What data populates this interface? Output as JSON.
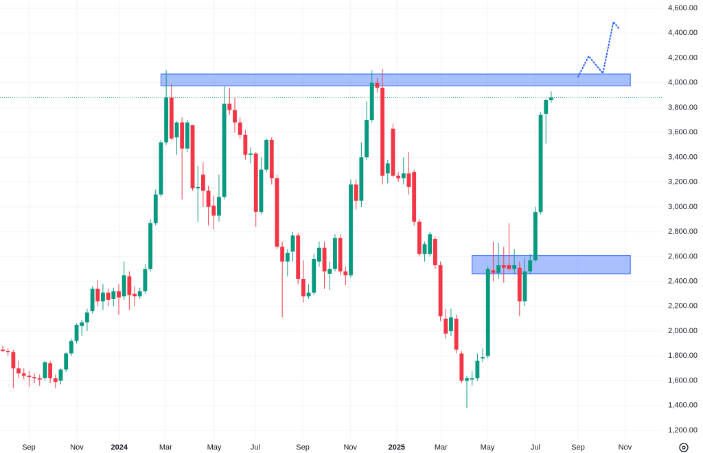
{
  "chart_data": {
    "type": "candlestick",
    "up_color": "#089981",
    "down_color": "#f23645",
    "zone_color": "#2962ff",
    "projection_color": "#2962ff",
    "price_line_color": "#089981",
    "xlim": [
      -0.52,
      125.1
    ],
    "ylim": [
      1134,
      4666
    ],
    "grid": true,
    "xticks": [
      {
        "value": 4.95,
        "label": "Sep"
      },
      {
        "value": 14.06,
        "label": "Nov"
      },
      {
        "value": 22.1,
        "label": "2024"
      },
      {
        "value": 30.9,
        "label": "Mar"
      },
      {
        "value": 40.1,
        "label": "May"
      },
      {
        "value": 47.9,
        "label": "Jul"
      },
      {
        "value": 56.9,
        "label": "Sep"
      },
      {
        "value": 65.9,
        "label": "Nov"
      },
      {
        "value": 74.7,
        "label": "2025"
      },
      {
        "value": 83.1,
        "label": "Mar"
      },
      {
        "value": 91.9,
        "label": "May"
      },
      {
        "value": 101.0,
        "label": "Jul"
      },
      {
        "value": 109.1,
        "label": "Sep"
      },
      {
        "value": 118.0,
        "label": "Nov"
      }
    ],
    "yticks": [
      {
        "value": 1200,
        "label": "1,200.00"
      },
      {
        "value": 1400,
        "label": "1,400.00"
      },
      {
        "value": 1600,
        "label": "1,600.00"
      },
      {
        "value": 1800,
        "label": "1,800.00"
      },
      {
        "value": 2000,
        "label": "2,000.00"
      },
      {
        "value": 2200,
        "label": "2,200.00"
      },
      {
        "value": 2400,
        "label": "2,400.00"
      },
      {
        "value": 2600,
        "label": "2,600.00"
      },
      {
        "value": 2800,
        "label": "2,800.00"
      },
      {
        "value": 3000,
        "label": "3,000.00"
      },
      {
        "value": 3200,
        "label": "3,200.00"
      },
      {
        "value": 3400,
        "label": "3,400.00"
      },
      {
        "value": 3600,
        "label": "3,600.00"
      },
      {
        "value": 3800,
        "label": "3,800.00"
      },
      {
        "value": 4000,
        "label": "4,000.00"
      },
      {
        "value": 4200,
        "label": "4,200.00"
      },
      {
        "value": 4400,
        "label": "4,400.00"
      },
      {
        "value": 4600,
        "label": "4,600.00"
      }
    ],
    "ohlc": [
      [
        1850,
        1880,
        1830,
        1840
      ],
      [
        1840,
        1860,
        1800,
        1830
      ],
      [
        1830,
        1850,
        1540,
        1700
      ],
      [
        1700,
        1760,
        1620,
        1660
      ],
      [
        1660,
        1700,
        1610,
        1640
      ],
      [
        1640,
        1680,
        1550,
        1630
      ],
      [
        1630,
        1660,
        1580,
        1620
      ],
      [
        1620,
        1650,
        1560,
        1610
      ],
      [
        1620,
        1760,
        1600,
        1750
      ],
      [
        1740,
        1760,
        1580,
        1620
      ],
      [
        1620,
        1650,
        1540,
        1590
      ],
      [
        1600,
        1700,
        1570,
        1690
      ],
      [
        1690,
        1830,
        1670,
        1820
      ],
      [
        1820,
        1940,
        1800,
        1920
      ],
      [
        1920,
        2060,
        1900,
        2050
      ],
      [
        2040,
        2090,
        1960,
        2070
      ],
      [
        2070,
        2180,
        2000,
        2150
      ],
      [
        2160,
        2360,
        2140,
        2340
      ],
      [
        2340,
        2410,
        2200,
        2240
      ],
      [
        2240,
        2380,
        2170,
        2310
      ],
      [
        2310,
        2340,
        2200,
        2250
      ],
      [
        2260,
        2350,
        2200,
        2320
      ],
      [
        2320,
        2380,
        2130,
        2270
      ],
      [
        2280,
        2560,
        2250,
        2450
      ],
      [
        2440,
        2480,
        2170,
        2290
      ],
      [
        2300,
        2360,
        2200,
        2280
      ],
      [
        2280,
        2350,
        2260,
        2320
      ],
      [
        2320,
        2540,
        2300,
        2500
      ],
      [
        2500,
        2900,
        2480,
        2870
      ],
      [
        2870,
        3140,
        2850,
        3100
      ],
      [
        3100,
        3540,
        3080,
        3520
      ],
      [
        3520,
        4100,
        3500,
        3880
      ],
      [
        3880,
        3990,
        3540,
        3550
      ],
      [
        3560,
        3690,
        3420,
        3680
      ],
      [
        3680,
        3720,
        3060,
        3470
      ],
      [
        3470,
        3700,
        3440,
        3680
      ],
      [
        3660,
        3660,
        3130,
        3150
      ],
      [
        3150,
        3330,
        2880,
        3160
      ],
      [
        3260,
        3360,
        3000,
        3130
      ],
      [
        3130,
        3170,
        2850,
        3000
      ],
      [
        3010,
        3090,
        2820,
        2930
      ],
      [
        2930,
        3260,
        2880,
        3080
      ],
      [
        3080,
        3970,
        3060,
        3830
      ],
      [
        3830,
        3960,
        3740,
        3780
      ],
      [
        3780,
        3880,
        3600,
        3680
      ],
      [
        3680,
        3720,
        3550,
        3580
      ],
      [
        3580,
        3620,
        3380,
        3420
      ],
      [
        3420,
        3480,
        3350,
        3430
      ],
      [
        3430,
        3440,
        2840,
        2960
      ],
      [
        2960,
        3400,
        2940,
        3300
      ],
      [
        3300,
        3550,
        3280,
        3540
      ],
      [
        3540,
        3560,
        3180,
        3230
      ],
      [
        3230,
        3260,
        2660,
        2680
      ],
      [
        2680,
        2720,
        2110,
        2560
      ],
      [
        2560,
        2660,
        2440,
        2630
      ],
      [
        2640,
        2800,
        2560,
        2770
      ],
      [
        2770,
        2790,
        2380,
        2420
      ],
      [
        2420,
        2570,
        2230,
        2280
      ],
      [
        2280,
        2380,
        2260,
        2310
      ],
      [
        2310,
        2620,
        2290,
        2580
      ],
      [
        2560,
        2720,
        2520,
        2670
      ],
      [
        2670,
        2720,
        2340,
        2480
      ],
      [
        2460,
        2560,
        2330,
        2500
      ],
      [
        2500,
        2780,
        2480,
        2750
      ],
      [
        2750,
        2780,
        2450,
        2480
      ],
      [
        2480,
        2520,
        2370,
        2450
      ],
      [
        2450,
        3220,
        2430,
        3180
      ],
      [
        3180,
        3220,
        2980,
        3050
      ],
      [
        3050,
        3520,
        3000,
        3400
      ],
      [
        3400,
        3850,
        3380,
        3700
      ],
      [
        3700,
        4100,
        3680,
        4000
      ],
      [
        4000,
        4040,
        3920,
        3960
      ],
      [
        3960,
        4110,
        3180,
        3250
      ],
      [
        3270,
        3380,
        3190,
        3350
      ],
      [
        3630,
        3670,
        3240,
        3250
      ],
      [
        3250,
        3280,
        3200,
        3230
      ],
      [
        3230,
        3400,
        3180,
        3270
      ],
      [
        3270,
        3440,
        3100,
        3160
      ],
      [
        3280,
        3300,
        2850,
        2880
      ],
      [
        2880,
        2900,
        2600,
        2620
      ],
      [
        2620,
        2720,
        2560,
        2700
      ],
      [
        2620,
        2800,
        2600,
        2780
      ],
      [
        2740,
        2760,
        2500,
        2530
      ],
      [
        2530,
        2560,
        2080,
        2120
      ],
      [
        2100,
        2180,
        1940,
        1980
      ],
      [
        2000,
        2180,
        1960,
        2110
      ],
      [
        2100,
        2130,
        1820,
        1850
      ],
      [
        1820,
        1840,
        1580,
        1600
      ],
      [
        1600,
        1640,
        1380,
        1620
      ],
      [
        1610,
        1680,
        1560,
        1620
      ],
      [
        1620,
        1820,
        1600,
        1760
      ],
      [
        1780,
        1860,
        1750,
        1790
      ],
      [
        1800,
        2520,
        1780,
        2500
      ],
      [
        2490,
        2720,
        2400,
        2470
      ],
      [
        2470,
        2710,
        2420,
        2530
      ],
      [
        2530,
        2680,
        2390,
        2510
      ],
      [
        2530,
        2870,
        2480,
        2500
      ],
      [
        2500,
        2660,
        2460,
        2530
      ],
      [
        2510,
        2560,
        2120,
        2240
      ],
      [
        2240,
        2590,
        2200,
        2480
      ],
      [
        2480,
        2620,
        2460,
        2570
      ],
      [
        2570,
        3000,
        2560,
        2960
      ],
      [
        2960,
        3760,
        2940,
        3740
      ],
      [
        3750,
        3870,
        3510,
        3860
      ],
      [
        3860,
        3930,
        3840,
        3880
      ]
    ],
    "zones": [
      {
        "xlim": [
          30,
          119
        ],
        "ylim": [
          3975,
          4070
        ]
      },
      {
        "xlim": [
          89,
          119
        ],
        "ylim": [
          2460,
          2610
        ]
      }
    ],
    "projection": {
      "x": [
        109.1,
        111.1,
        113.8,
        115.8,
        116.9
      ],
      "y": [
        4048,
        4214,
        4076,
        4490,
        4434
      ]
    },
    "price_line": 3880
  }
}
